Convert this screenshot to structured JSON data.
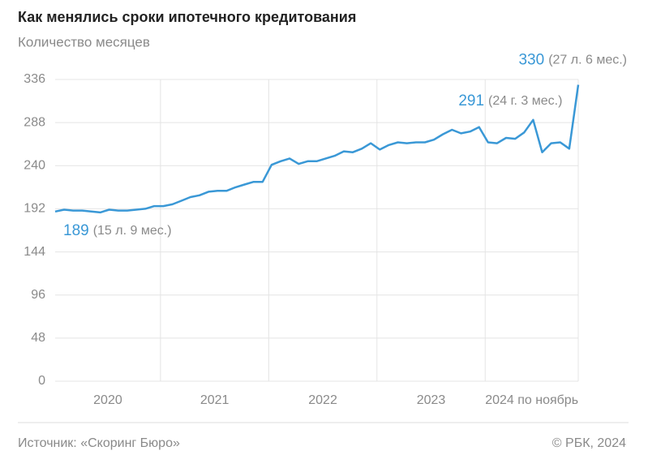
{
  "chart_data": {
    "type": "line",
    "title": "Как менялись сроки ипотечного кредитования",
    "subtitle": "Количество месяцев",
    "year_labels": [
      "2020",
      "2021",
      "2022",
      "2023",
      "2024 по ноябрь"
    ],
    "series": [
      {
        "color": "#3a98d6",
        "values": [
          189,
          191,
          190,
          190,
          189,
          188,
          191,
          190,
          190,
          191,
          192,
          195,
          195,
          197,
          201,
          205,
          207,
          211,
          212,
          212,
          216,
          219,
          222,
          222,
          241,
          245,
          248,
          242,
          245,
          245,
          248,
          251,
          256,
          255,
          259,
          265,
          258,
          263,
          266,
          265,
          266,
          266,
          269,
          275,
          280,
          276,
          278,
          283,
          266,
          265,
          271,
          270,
          277,
          291,
          255,
          265,
          266,
          259,
          330
        ],
        "value_labels": [
          "189",
          null,
          null,
          null,
          null,
          null,
          null,
          null,
          null,
          null,
          null,
          null,
          null,
          null,
          null,
          null,
          null,
          null,
          null,
          null,
          null,
          null,
          null,
          null,
          null,
          null,
          null,
          null,
          null,
          null,
          null,
          null,
          null,
          null,
          null,
          null,
          null,
          null,
          null,
          null,
          null,
          null,
          null,
          null,
          null,
          null,
          null,
          null,
          null,
          null,
          null,
          null,
          null,
          "291",
          null,
          null,
          null,
          null,
          "330"
        ],
        "value_notes": [
          "(15 л. 9 мес.)",
          null,
          null,
          null,
          null,
          null,
          null,
          null,
          null,
          null,
          null,
          null,
          null,
          null,
          null,
          null,
          null,
          null,
          null,
          null,
          null,
          null,
          null,
          null,
          null,
          null,
          null,
          null,
          null,
          null,
          null,
          null,
          null,
          null,
          null,
          null,
          null,
          null,
          null,
          null,
          null,
          null,
          null,
          null,
          null,
          null,
          null,
          null,
          null,
          null,
          null,
          null,
          null,
          "(24 г. 3 мес.)",
          null,
          null,
          null,
          null,
          "(27 л. 6 мес.)"
        ]
      }
    ],
    "ylim": [
      0,
      336
    ],
    "yticks": [
      0,
      48,
      96,
      144,
      192,
      240,
      288,
      336
    ],
    "grid": true,
    "source": "Источник: «Скоринг Бюро»",
    "copyright": "© РБК, 2024"
  }
}
